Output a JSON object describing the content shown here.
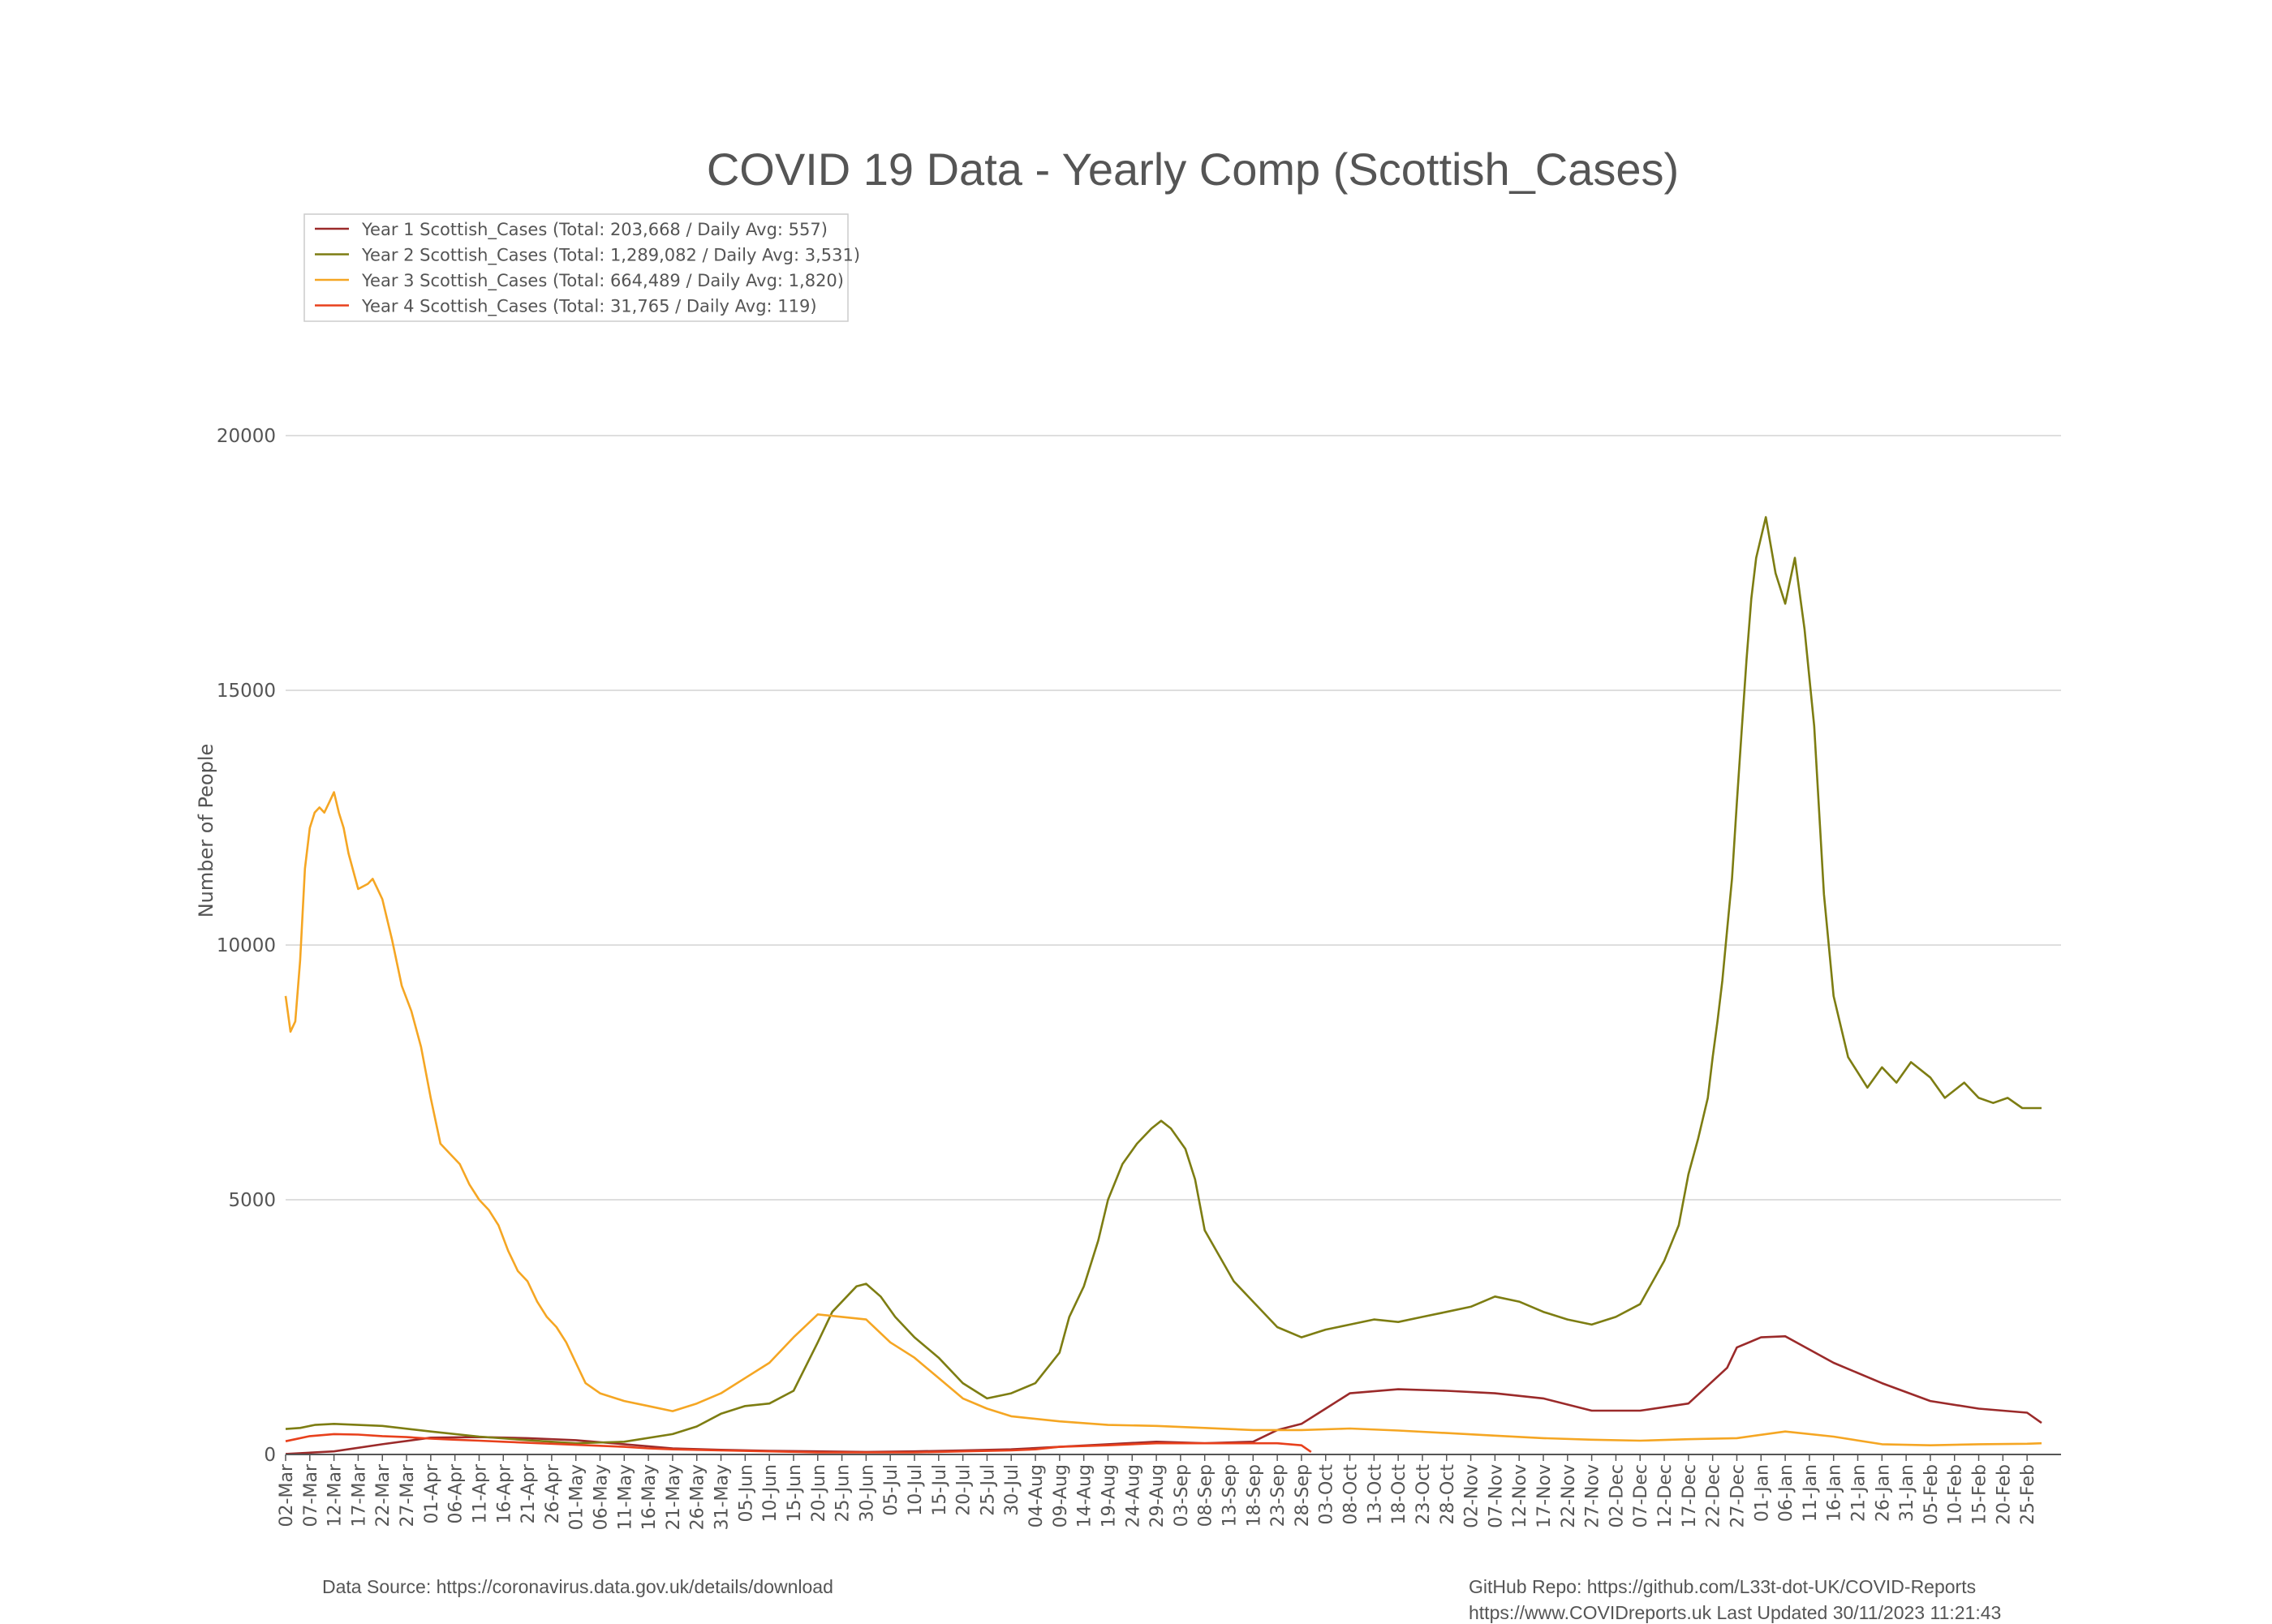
{
  "chart_data": {
    "type": "line",
    "title": "COVID 19 Data - Yearly Comp (Scottish_Cases)",
    "ylabel": "Number of People",
    "xlabel": "",
    "ylim": [
      0,
      20000
    ],
    "yticks": [
      0,
      5000,
      10000,
      15000,
      20000
    ],
    "grid": "horizontal",
    "legend_position": "top-left",
    "x_labels": [
      "02-Mar",
      "07-Mar",
      "12-Mar",
      "17-Mar",
      "22-Mar",
      "27-Mar",
      "01-Apr",
      "06-Apr",
      "11-Apr",
      "16-Apr",
      "21-Apr",
      "26-Apr",
      "01-May",
      "06-May",
      "11-May",
      "16-May",
      "21-May",
      "26-May",
      "31-May",
      "05-Jun",
      "10-Jun",
      "15-Jun",
      "20-Jun",
      "25-Jun",
      "30-Jun",
      "05-Jul",
      "10-Jul",
      "15-Jul",
      "20-Jul",
      "25-Jul",
      "30-Jul",
      "04-Aug",
      "09-Aug",
      "14-Aug",
      "19-Aug",
      "24-Aug",
      "29-Aug",
      "03-Sep",
      "08-Sep",
      "13-Sep",
      "18-Sep",
      "23-Sep",
      "28-Sep",
      "03-Oct",
      "08-Oct",
      "13-Oct",
      "18-Oct",
      "23-Oct",
      "28-Oct",
      "02-Nov",
      "07-Nov",
      "12-Nov",
      "17-Nov",
      "22-Nov",
      "27-Nov",
      "02-Dec",
      "07-Dec",
      "12-Dec",
      "17-Dec",
      "22-Dec",
      "27-Dec",
      "01-Jan",
      "06-Jan",
      "11-Jan",
      "16-Jan",
      "21-Jan",
      "26-Jan",
      "31-Jan",
      "05-Feb",
      "10-Feb",
      "15-Feb",
      "20-Feb",
      "25-Feb"
    ],
    "x_label_day_offsets": [
      0,
      5,
      10,
      15,
      20,
      25,
      30,
      35,
      40,
      45,
      50,
      55,
      60,
      65,
      70,
      75,
      80,
      85,
      90,
      95,
      100,
      105,
      110,
      115,
      120,
      125,
      130,
      135,
      140,
      145,
      150,
      155,
      160,
      165,
      170,
      175,
      180,
      185,
      190,
      195,
      200,
      205,
      210,
      215,
      220,
      225,
      230,
      235,
      240,
      245,
      250,
      255,
      260,
      265,
      270,
      275,
      280,
      285,
      290,
      295,
      300,
      305,
      310,
      315,
      320,
      325,
      330,
      335,
      340,
      345,
      350,
      355,
      360
    ],
    "x_day_range": [
      0,
      364
    ],
    "series": [
      {
        "name": "Year 1 Scottish_Cases (Total: 203,668 / Daily Avg: 557)",
        "color": "#9b2a2a",
        "x": [
          0,
          10,
          20,
          30,
          40,
          50,
          60,
          70,
          80,
          90,
          100,
          110,
          120,
          130,
          140,
          150,
          160,
          170,
          180,
          190,
          200,
          205,
          210,
          215,
          220,
          230,
          240,
          250,
          260,
          270,
          280,
          290,
          298,
          300,
          305,
          310,
          320,
          330,
          340,
          350,
          360,
          363
        ],
        "y": [
          10,
          60,
          200,
          330,
          340,
          320,
          280,
          200,
          120,
          90,
          70,
          60,
          50,
          60,
          80,
          100,
          150,
          200,
          250,
          220,
          250,
          480,
          600,
          900,
          1200,
          1280,
          1250,
          1200,
          1100,
          860,
          860,
          1000,
          1700,
          2100,
          2300,
          2320,
          1800,
          1400,
          1050,
          900,
          820,
          620
        ]
      },
      {
        "name": "Year 2 Scottish_Cases (Total: 1,289,082 / Daily Avg: 3,531)",
        "color": "#7d7d12",
        "x": [
          0,
          3,
          6,
          10,
          20,
          30,
          40,
          50,
          60,
          70,
          80,
          85,
          90,
          95,
          100,
          105,
          110,
          113,
          118,
          120,
          123,
          126,
          130,
          135,
          140,
          145,
          150,
          155,
          160,
          162,
          165,
          168,
          170,
          173,
          176,
          179,
          181,
          183,
          186,
          188,
          190,
          193,
          196,
          200,
          205,
          210,
          215,
          220,
          225,
          230,
          235,
          240,
          245,
          250,
          255,
          260,
          265,
          270,
          275,
          280,
          285,
          288,
          290,
          292,
          294,
          295,
          296,
          297,
          298,
          299,
          300,
          301,
          302,
          303,
          304,
          306,
          308,
          310,
          312,
          314,
          316,
          318,
          320,
          323,
          327,
          330,
          333,
          336,
          340,
          343,
          347,
          350,
          353,
          356,
          359,
          363
        ],
        "y": [
          500,
          520,
          580,
          600,
          560,
          450,
          350,
          280,
          220,
          250,
          400,
          550,
          800,
          950,
          1000,
          1250,
          2200,
          2800,
          3300,
          3350,
          3100,
          2700,
          2300,
          1900,
          1400,
          1100,
          1200,
          1400,
          2000,
          2700,
          3300,
          4200,
          5000,
          5700,
          6100,
          6400,
          6550,
          6400,
          6000,
          5400,
          4400,
          3900,
          3400,
          3000,
          2500,
          2300,
          2450,
          2550,
          2650,
          2600,
          2700,
          2800,
          2900,
          3100,
          3000,
          2800,
          2650,
          2550,
          2700,
          2950,
          3800,
          4500,
          5500,
          6200,
          7000,
          7800,
          8500,
          9300,
          10300,
          11300,
          12800,
          14200,
          15600,
          16800,
          17600,
          18400,
          17300,
          16700,
          17600,
          16200,
          14300,
          11000,
          9000,
          7800,
          7200,
          7600,
          7300,
          7700,
          7400,
          7000,
          7300,
          7000,
          6900,
          7000,
          6800,
          6800
        ]
      },
      {
        "name": "Year 3 Scottish_Cases (Total: 664,489 / Daily Avg: 1,820)",
        "color": "#f5a623",
        "x": [
          0,
          1,
          2,
          3,
          4,
          5,
          6,
          7,
          8,
          9,
          10,
          11,
          12,
          13,
          15,
          17,
          18,
          19,
          20,
          22,
          24,
          26,
          28,
          30,
          32,
          34,
          36,
          38,
          40,
          42,
          44,
          46,
          48,
          50,
          52,
          54,
          56,
          58,
          60,
          62,
          65,
          70,
          75,
          80,
          85,
          90,
          95,
          100,
          105,
          110,
          115,
          120,
          125,
          130,
          135,
          140,
          145,
          150,
          160,
          170,
          180,
          190,
          200,
          210,
          220,
          230,
          240,
          250,
          260,
          270,
          280,
          290,
          300,
          310,
          320,
          330,
          340,
          350,
          360,
          363
        ],
        "y": [
          9000,
          8300,
          8500,
          9700,
          11500,
          12300,
          12600,
          12700,
          12600,
          12800,
          13000,
          12600,
          12300,
          11800,
          11100,
          11200,
          11300,
          11100,
          10900,
          10100,
          9200,
          8700,
          8000,
          7000,
          6100,
          5900,
          5700,
          5300,
          5000,
          4800,
          4500,
          4000,
          3600,
          3400,
          3000,
          2700,
          2500,
          2200,
          1800,
          1400,
          1200,
          1050,
          950,
          850,
          1000,
          1200,
          1500,
          1800,
          2300,
          2750,
          2700,
          2650,
          2200,
          1900,
          1500,
          1100,
          900,
          750,
          650,
          580,
          560,
          520,
          480,
          480,
          510,
          470,
          420,
          370,
          320,
          290,
          270,
          300,
          320,
          450,
          350,
          200,
          180,
          200,
          210,
          220
        ]
      },
      {
        "name": "Year 4 Scottish_Cases (Total: 31,765 / Daily Avg: 119)",
        "color": "#e8401c",
        "x": [
          0,
          2,
          5,
          10,
          15,
          20,
          25,
          30,
          35,
          40,
          45,
          50,
          55,
          60,
          65,
          70,
          75,
          80,
          85,
          90,
          95,
          100,
          110,
          120,
          130,
          140,
          150,
          155,
          160,
          170,
          180,
          190,
          200,
          205,
          210,
          212
        ],
        "y": [
          260,
          300,
          360,
          400,
          390,
          360,
          340,
          310,
          290,
          270,
          250,
          230,
          210,
          190,
          170,
          150,
          120,
          100,
          90,
          80,
          70,
          60,
          40,
          40,
          40,
          60,
          80,
          100,
          150,
          180,
          220,
          220,
          220,
          220,
          180,
          50
        ]
      }
    ]
  },
  "footer": {
    "source": "Data Source: https://coronavirus.data.gov.uk/details/download",
    "repo": "GitHub Repo: https://github.com/L33t-dot-UK/COVID-Reports",
    "site": "https://www.COVIDreports.uk   Last Updated 30/11/2023 11:21:43"
  }
}
